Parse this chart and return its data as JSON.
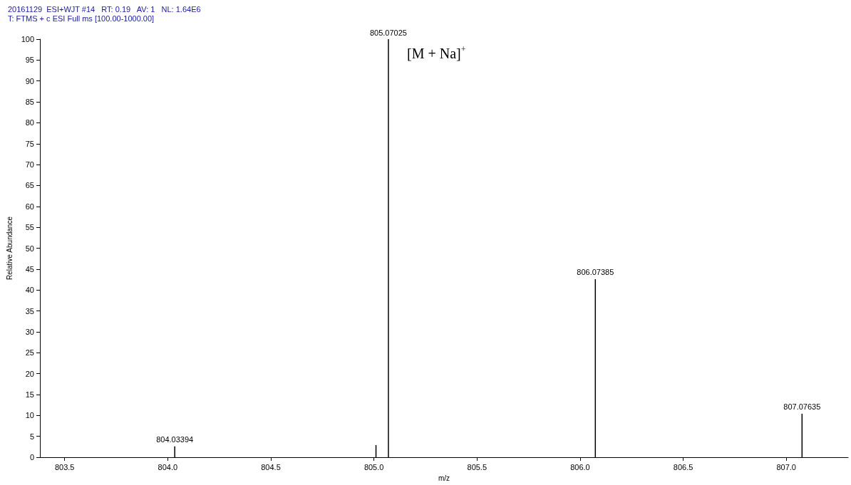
{
  "chart_data": {
    "type": "bar",
    "title": "20161129  ESI+WJT #14   RT: 0.19   AV: 1   NL: 1.64E6",
    "subtitle": "T: FTMS + c ESI Full ms [100.00-1000.00]",
    "xlabel": "m/z",
    "ylabel": "Relative Abundance",
    "x": [
      804.03394,
      805.01,
      805.07025,
      806.07385,
      807.07635
    ],
    "values": [
      2.6,
      2.9,
      100,
      42.6,
      10.4
    ],
    "color": "#000000",
    "xlim": [
      803.38,
      807.3
    ],
    "xticks": [
      803.5,
      {
        "value": 804.0,
        "label": "804.0"
      },
      804.5,
      {
        "value": 805.0,
        "label": "805.0"
      },
      805.5,
      {
        "value": 806.0,
        "label": "806.0"
      },
      806.5,
      {
        "value": 807.0,
        "label": "807.0"
      }
    ],
    "ylim": [
      0,
      100
    ],
    "yticks": [
      0,
      5,
      10,
      15,
      20,
      25,
      30,
      35,
      40,
      45,
      50,
      55,
      60,
      65,
      70,
      75,
      80,
      85,
      90,
      95,
      100
    ],
    "grid": false,
    "annotations": [
      {
        "text": "[M + Na]$^{+}$",
        "x": 805.07025,
        "y": 100
      },
      {
        "text": "804.03394",
        "x": 804.03394,
        "y": 2.6
      },
      {
        "text": "805.07025",
        "x": 805.07025,
        "y": 100
      },
      {
        "text": "806.07385",
        "x": 806.07385,
        "y": 42.6
      },
      {
        "text": "807.07635",
        "x": 807.07635,
        "y": 10.4
      }
    ]
  }
}
